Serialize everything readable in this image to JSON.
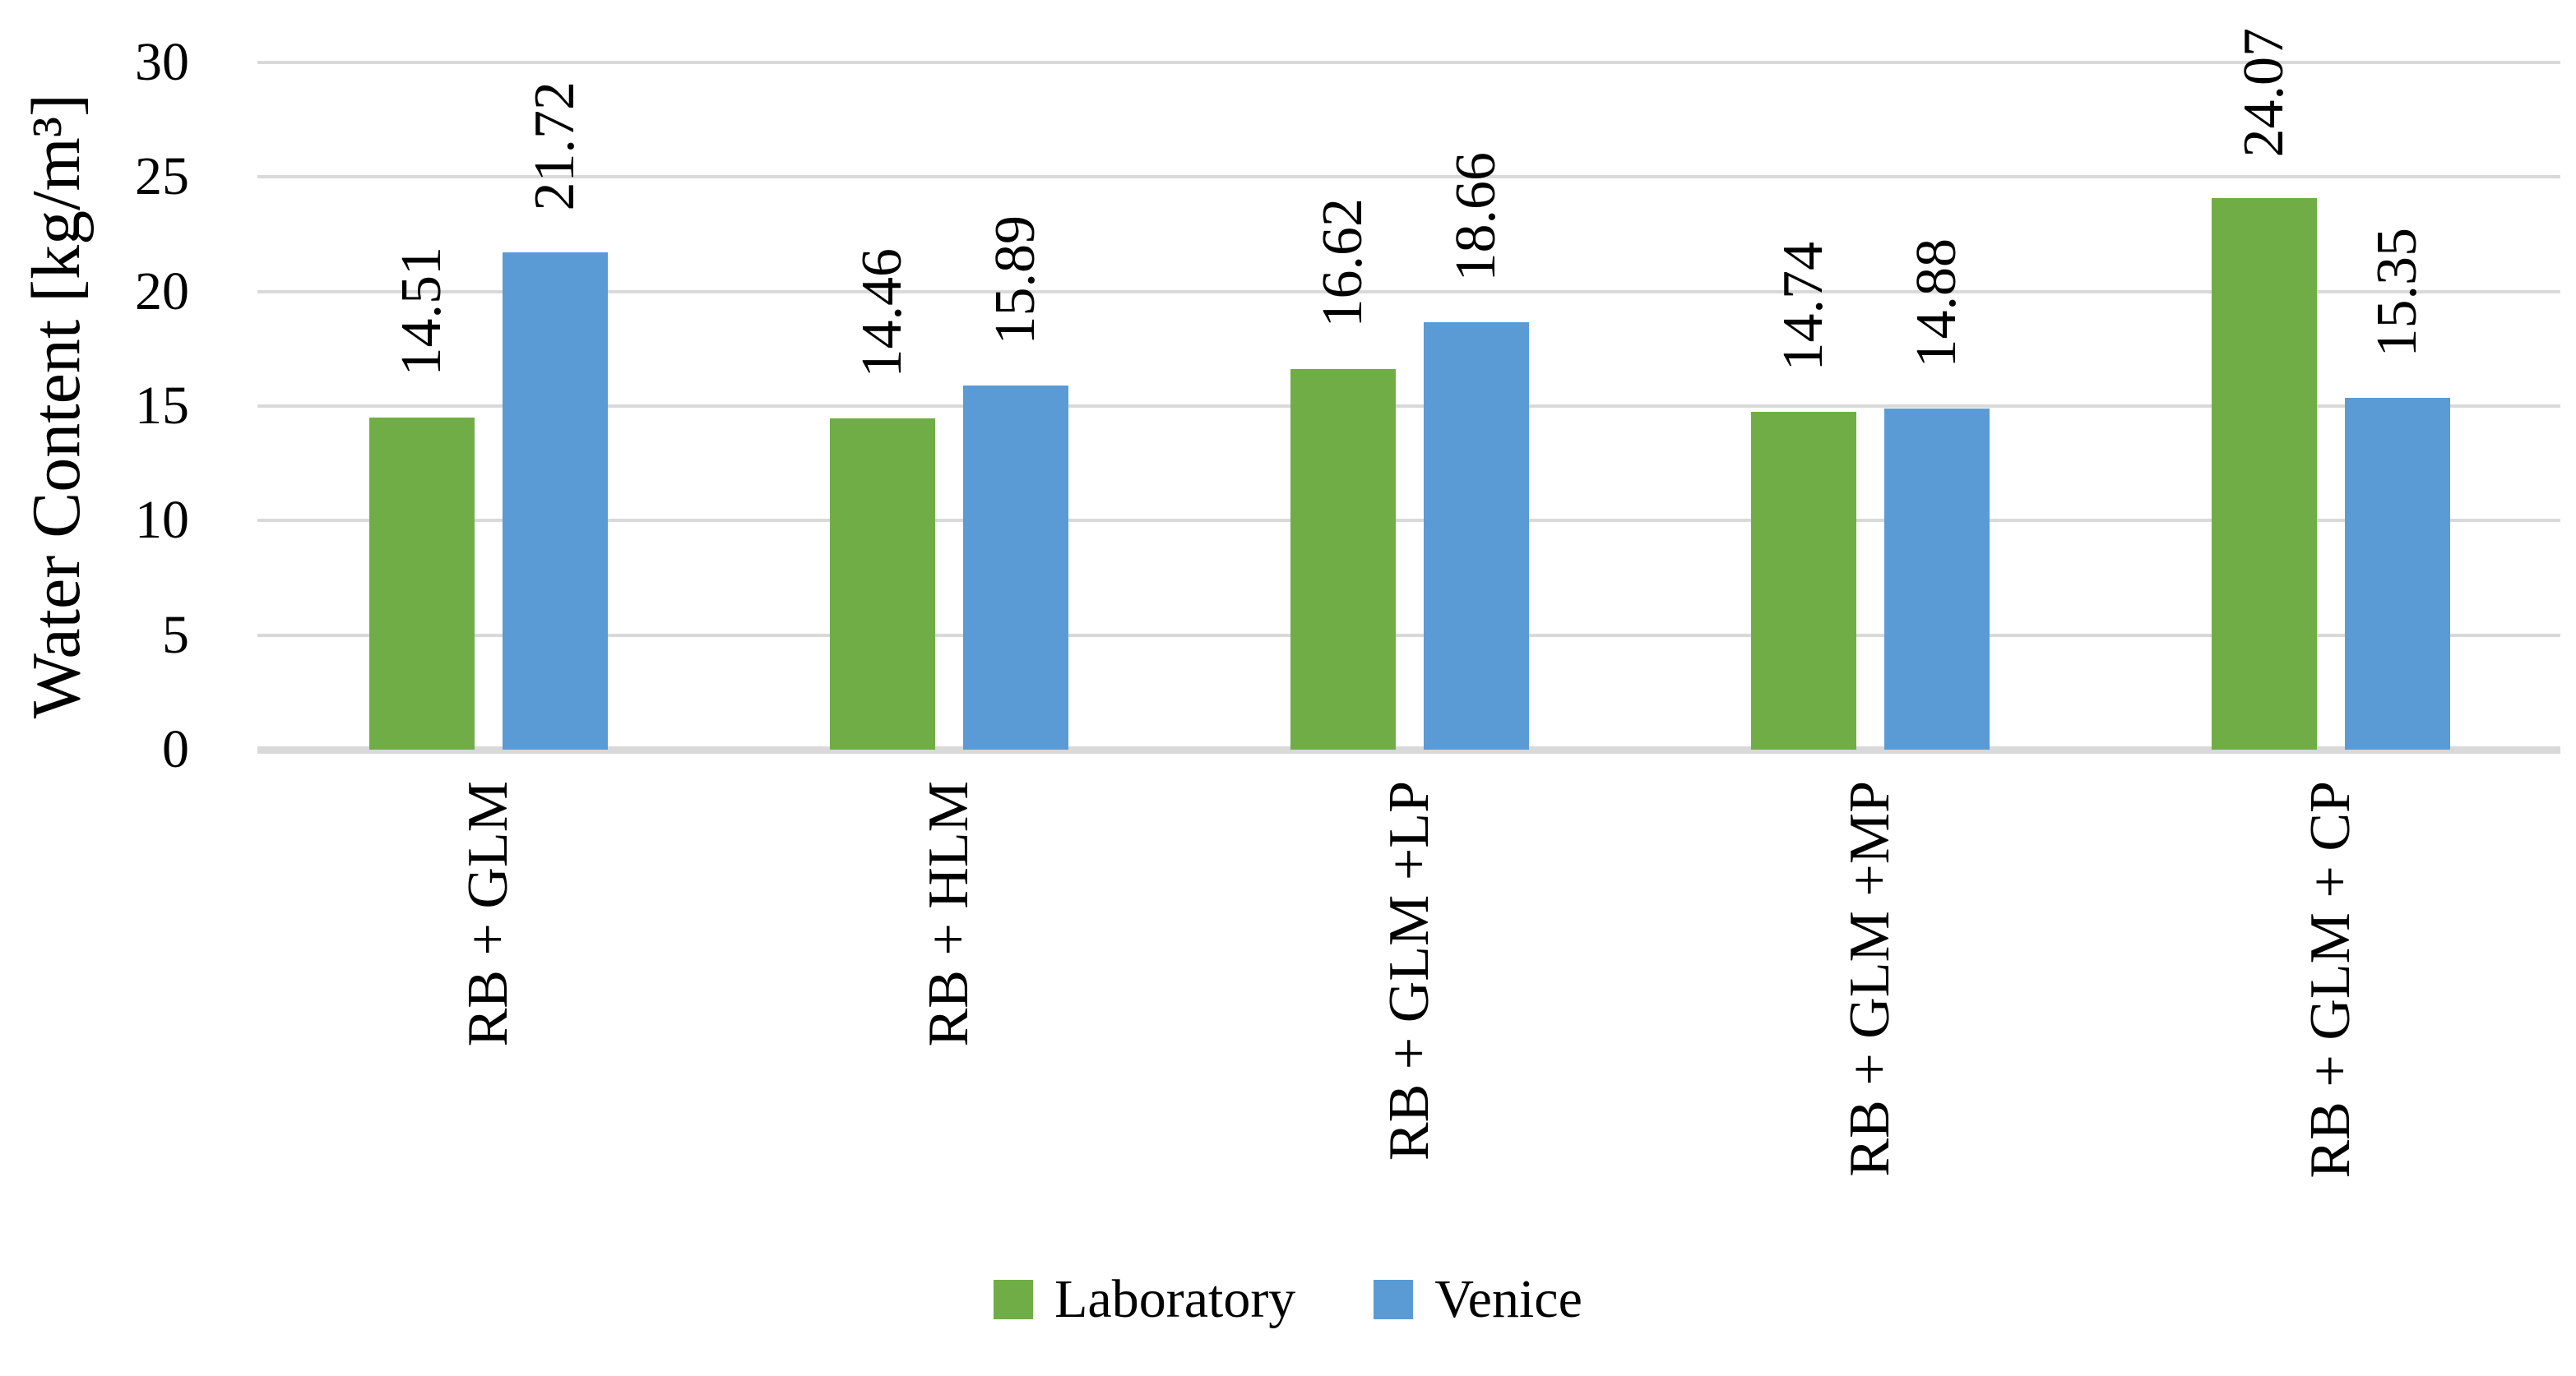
{
  "chart_data": {
    "type": "bar",
    "title": "",
    "xlabel": "",
    "ylabel": "Water Content [kg/m³]",
    "categories": [
      "RB + GLM",
      "RB + HLM",
      "RB + GLM +LP",
      "RB + GLM +MP",
      "RB + GLM + CP"
    ],
    "series": [
      {
        "name": "Laboratory",
        "color": "#70AD47",
        "values": [
          14.51,
          14.46,
          16.62,
          14.74,
          24.07
        ],
        "labels": [
          "14.51",
          "14.46",
          "16.62",
          "14.74",
          "24.07"
        ]
      },
      {
        "name": "Venice",
        "color": "#5B9BD5",
        "values": [
          21.72,
          15.89,
          18.66,
          14.88,
          15.35
        ],
        "labels": [
          "21.72",
          "15.89",
          "18.66",
          "14.88",
          "15.35"
        ]
      }
    ],
    "ylim": [
      0,
      30
    ],
    "ytick_step": 5,
    "ytick_labels": [
      "0",
      "5",
      "10",
      "15",
      "20",
      "25",
      "30"
    ],
    "grid": true,
    "gridline_color": "#D9D9D9",
    "axis_line_color": "#D9D9D9",
    "text_color": "#000000",
    "background_color": "#FFFFFF",
    "legend_position": "bottom",
    "data_label_rotation": -90,
    "category_label_rotation": -90
  }
}
